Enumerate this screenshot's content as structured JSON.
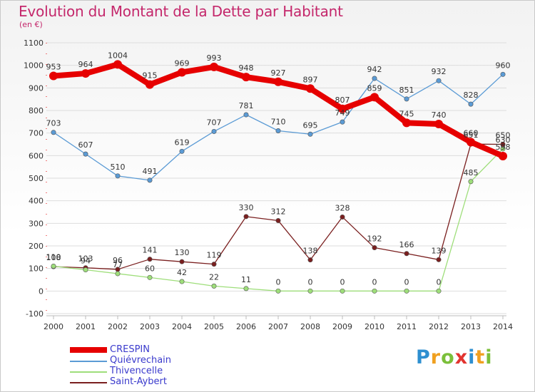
{
  "chart_data": {
    "type": "line",
    "title": "Evolution du Montant de la Dette par Habitant",
    "subtitle": "(en €)",
    "x": [
      "2000",
      "2001",
      "2002",
      "2003",
      "2004",
      "2005",
      "2006",
      "2007",
      "2008",
      "2009",
      "2010",
      "2011",
      "2012",
      "2013",
      "2014"
    ],
    "ylim": [
      -100,
      1100
    ],
    "yticks": [
      -100,
      0,
      100,
      200,
      300,
      400,
      500,
      600,
      700,
      800,
      900,
      1000,
      1100
    ],
    "grid": "horizontal",
    "legend_position": "bottom-left",
    "series": [
      {
        "name": "CRESPIN",
        "color": "#e60000",
        "width": 8,
        "values": [
          953,
          964,
          1004,
          915,
          969,
          993,
          948,
          927,
          897,
          807,
          859,
          745,
          740,
          660,
          598
        ],
        "labels": [
          "953",
          "964",
          "1004",
          "915",
          "969",
          "993",
          "948",
          "927",
          "897",
          "807",
          "859",
          "745",
          "740",
          "660",
          "598"
        ]
      },
      {
        "name": "Quiévrechain",
        "color": "#5b9bd5",
        "width": 1.3,
        "values": [
          703,
          607,
          510,
          491,
          619,
          707,
          781,
          710,
          695,
          749,
          942,
          851,
          932,
          828,
          960
        ],
        "labels": [
          "703",
          "607",
          "510",
          "491",
          "619",
          "707",
          "781",
          "710",
          "695",
          "749",
          "942",
          "851",
          "932",
          "828",
          "960"
        ]
      },
      {
        "name": "Thivencelle",
        "color": "#9ede7a",
        "width": 1.3,
        "values": [
          110,
          94,
          77,
          60,
          42,
          22,
          11,
          0,
          0,
          0,
          0,
          0,
          0,
          485,
          630
        ],
        "labels": [
          "110",
          "94",
          "77",
          "60",
          "42",
          "22",
          "11",
          "0",
          "0",
          "0",
          "0",
          "0",
          "0",
          "485",
          "630"
        ]
      },
      {
        "name": "Saint-Aybert",
        "color": "#7a1f1f",
        "width": 1.3,
        "values": [
          108,
          103,
          96,
          141,
          130,
          119,
          330,
          312,
          138,
          328,
          192,
          166,
          139,
          651,
          650
        ],
        "labels": [
          "108",
          "103",
          "96",
          "141",
          "130",
          "119",
          "330",
          "312",
          "138",
          "328",
          "192",
          "166",
          "139",
          "651",
          "650"
        ]
      }
    ]
  },
  "logo": {
    "text": "Proxiti"
  }
}
